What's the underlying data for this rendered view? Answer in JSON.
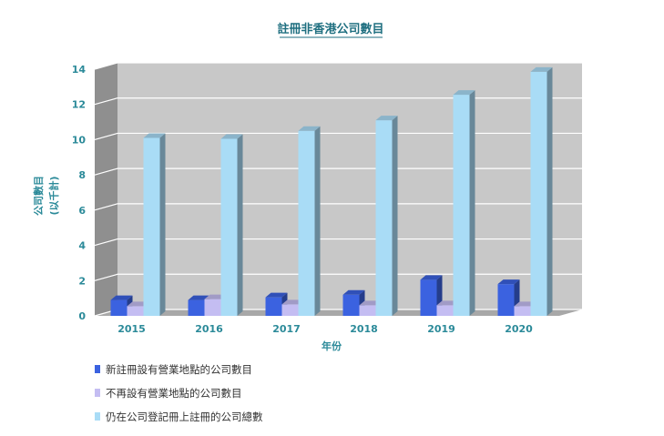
{
  "chart_data": {
    "type": "bar",
    "title": "註冊非香港公司數目",
    "xlabel": "年份",
    "ylabel_lines": [
      "公司數目",
      "(以千計)"
    ],
    "categories": [
      "2015",
      "2016",
      "2017",
      "2018",
      "2019",
      "2020"
    ],
    "ylim": [
      0,
      14
    ],
    "yticks": [
      0,
      2,
      4,
      6,
      8,
      10,
      12,
      14
    ],
    "grid": true,
    "legend_position": "bottom-left",
    "series": [
      {
        "name": "新註冊設有營業地點的公司數目",
        "values": [
          0.9,
          0.9,
          1.05,
          1.2,
          2.05,
          1.8
        ],
        "color": "#3b62e0"
      },
      {
        "name": "不再設有營業地點的公司數目",
        "values": [
          0.55,
          0.95,
          0.65,
          0.6,
          0.6,
          0.55
        ],
        "color": "#c4bdf2"
      },
      {
        "name": "仍在公司登記冊上註冊的公司總數",
        "values": [
          10.1,
          10.05,
          10.5,
          11.1,
          12.55,
          13.85
        ],
        "color": "#a9dcf6"
      }
    ]
  },
  "colors": {
    "title": "#1f6f80",
    "axis_text": "#2b8a99",
    "plot_back": "#c8c8c8",
    "plot_side": "#8f8f8f",
    "plot_floor": "#a8a8a8",
    "grid": "#ffffff"
  }
}
